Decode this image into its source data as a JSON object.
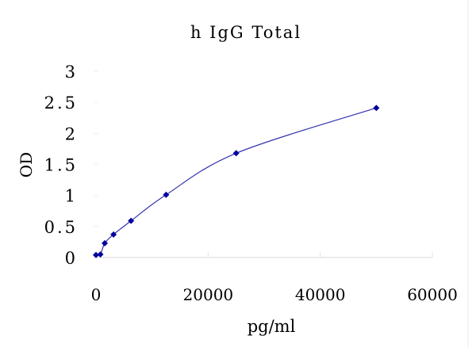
{
  "chart_data": {
    "type": "line",
    "title": "h IgG Total",
    "xlabel": "pg/ml",
    "ylabel": "OD",
    "xlim": [
      0,
      60000
    ],
    "ylim": [
      0,
      3
    ],
    "xticks": [
      "0",
      "20000",
      "40000",
      "60000"
    ],
    "yticks": [
      "0",
      "0.5",
      "1",
      "1.5",
      "2",
      "2.5",
      "3"
    ],
    "grid": false,
    "legend": "none",
    "series": [
      {
        "color": "#00009C",
        "line_color": "#3333B0",
        "marker": "diamond",
        "smooth": true,
        "x": [
          0,
          781,
          1562,
          3125,
          6250,
          12500,
          25000,
          50000
        ],
        "y": [
          0.04,
          0.05,
          0.23,
          0.37,
          0.59,
          1.01,
          1.68,
          2.41
        ]
      }
    ]
  }
}
